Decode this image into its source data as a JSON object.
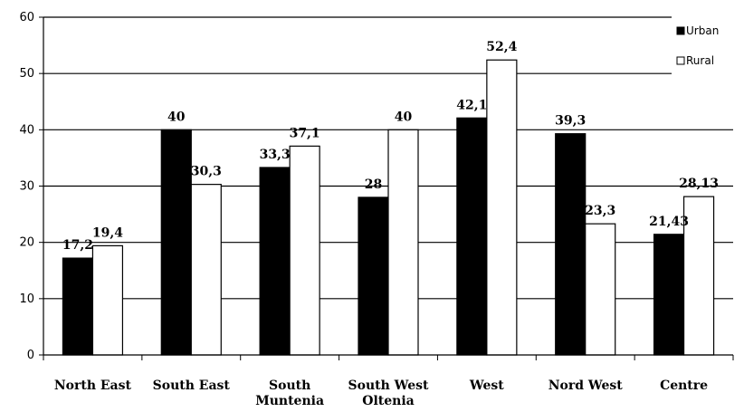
{
  "chart_data": {
    "type": "bar",
    "categories": [
      [
        "North East"
      ],
      [
        "South East"
      ],
      [
        "South",
        "Muntenia"
      ],
      [
        "South West",
        "Oltenia"
      ],
      [
        "West"
      ],
      [
        "Nord West"
      ],
      [
        "Centre"
      ]
    ],
    "series": [
      {
        "name": "Urban",
        "color": "#000000",
        "values": [
          17.2,
          40,
          33.3,
          28,
          42.1,
          39.3,
          21.43
        ],
        "labels": [
          "17,2",
          "40",
          "33,3",
          "28",
          "42,1",
          "39,3",
          "21,43"
        ]
      },
      {
        "name": "Rural",
        "color": "#ffffff",
        "values": [
          19.4,
          30.3,
          37.1,
          40,
          52.4,
          23.3,
          28.13
        ],
        "labels": [
          "19,4",
          "30,3",
          "37,1",
          "40",
          "52,4",
          "23,3",
          "28,13"
        ]
      }
    ],
    "yticks": [
      "0",
      "10",
      "20",
      "30",
      "40",
      "50",
      "60"
    ],
    "ylim": [
      0,
      60
    ],
    "grid": true,
    "legend_position": "top-right"
  }
}
